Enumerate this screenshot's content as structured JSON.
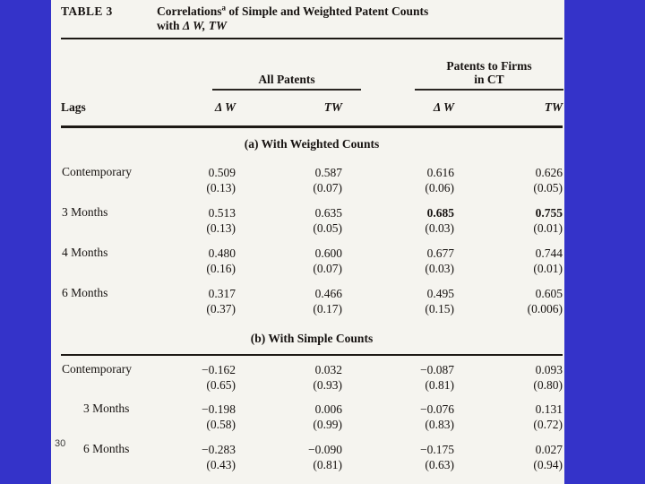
{
  "slide": {
    "background_color": "#3433c9",
    "page_number": "30"
  },
  "table": {
    "label": "TABLE 3",
    "title": {
      "main": "Correlations",
      "footnote_mark": "a",
      "rest": " of Simple and Weighted Patent Counts",
      "line2_prefix": "with ",
      "line2_math": "Δ W, TW"
    },
    "col_groups": [
      {
        "line1": "All Patents",
        "line2": ""
      },
      {
        "line1": "Patents to Firms",
        "line2": "in CT"
      }
    ],
    "lags_header": "Lags",
    "col_headers": [
      "Δ W",
      "TW",
      "Δ W",
      "TW"
    ],
    "sections": [
      {
        "heading": "(a)  With Weighted Counts",
        "rows": [
          {
            "label": "Contemporary",
            "indent": false,
            "cells": [
              {
                "value": "0.509",
                "p": "(0.13)",
                "bold": false
              },
              {
                "value": "0.587",
                "p": "(0.07)",
                "bold": false
              },
              {
                "value": "0.616",
                "p": "(0.06)",
                "bold": false
              },
              {
                "value": "0.626",
                "p": "(0.05)",
                "bold": false
              }
            ]
          },
          {
            "label": "3 Months",
            "indent": false,
            "cells": [
              {
                "value": "0.513",
                "p": "(0.13)",
                "bold": false
              },
              {
                "value": "0.635",
                "p": "(0.05)",
                "bold": false
              },
              {
                "value": "0.685",
                "p": "(0.03)",
                "bold": true
              },
              {
                "value": "0.755",
                "p": "(0.01)",
                "bold": true
              }
            ]
          },
          {
            "label": "4 Months",
            "indent": false,
            "cells": [
              {
                "value": "0.480",
                "p": "(0.16)",
                "bold": false
              },
              {
                "value": "0.600",
                "p": "(0.07)",
                "bold": false
              },
              {
                "value": "0.677",
                "p": "(0.03)",
                "bold": false
              },
              {
                "value": "0.744",
                "p": "(0.01)",
                "bold": false
              }
            ]
          },
          {
            "label": "6 Months",
            "indent": false,
            "cells": [
              {
                "value": "0.317",
                "p": "(0.37)",
                "bold": false
              },
              {
                "value": "0.466",
                "p": "(0.17)",
                "bold": false
              },
              {
                "value": "0.495",
                "p": "(0.15)",
                "bold": false
              },
              {
                "value": "0.605",
                "p": "(0.006)",
                "bold": false
              }
            ]
          }
        ]
      },
      {
        "heading": "(b)  With Simple Counts",
        "rows": [
          {
            "label": "Contemporary",
            "indent": false,
            "cells": [
              {
                "value": "−0.162",
                "p": "(0.65)",
                "bold": false
              },
              {
                "value": "0.032",
                "p": "(0.93)",
                "bold": false
              },
              {
                "value": "−0.087",
                "p": "(0.81)",
                "bold": false
              },
              {
                "value": "0.093",
                "p": "(0.80)",
                "bold": false
              }
            ]
          },
          {
            "label": "3 Months",
            "indent": true,
            "cells": [
              {
                "value": "−0.198",
                "p": "(0.58)",
                "bold": false
              },
              {
                "value": "0.006",
                "p": "(0.99)",
                "bold": false
              },
              {
                "value": "−0.076",
                "p": "(0.83)",
                "bold": false
              },
              {
                "value": "0.131",
                "p": "(0.72)",
                "bold": false
              }
            ]
          },
          {
            "label": "6 Months",
            "indent": true,
            "cells": [
              {
                "value": "−0.283",
                "p": "(0.43)",
                "bold": false
              },
              {
                "value": "−0.090",
                "p": "(0.81)",
                "bold": false
              },
              {
                "value": "−0.175",
                "p": "(0.63)",
                "bold": false
              },
              {
                "value": "0.027",
                "p": "(0.94)",
                "bold": false
              }
            ]
          }
        ]
      }
    ]
  }
}
